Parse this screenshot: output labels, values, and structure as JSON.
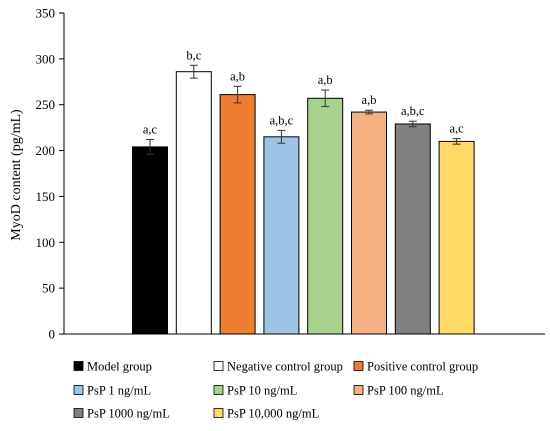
{
  "chart_data": {
    "type": "bar",
    "ylabel": "MyoD content (pg/mL)",
    "ylim": [
      0,
      350
    ],
    "yticks": [
      0,
      50,
      100,
      150,
      200,
      250,
      300,
      350
    ],
    "categories": [
      "Model group",
      "Negative control group",
      "Positive control group",
      "PsP 1 ng/mL",
      "PsP 10 ng/mL",
      "PsP 100 ng/mL",
      "PsP 1000 ng/mL",
      "PsP 10,000 ng/mL"
    ],
    "values": [
      204,
      286,
      261,
      215,
      257,
      242,
      229,
      210
    ],
    "errors": [
      8,
      7,
      9,
      7,
      9,
      2,
      3,
      3
    ],
    "annotations": [
      "a,c",
      "b,c",
      "a,b",
      "a,b,c",
      "a,b",
      "a,b",
      "a,b,c",
      "a,c"
    ],
    "colors": [
      "#000000",
      "#ffffff",
      "#ed7d31",
      "#9dc3e6",
      "#a9d18e",
      "#f4b183",
      "#808080",
      "#ffd966"
    ],
    "grid": false,
    "legend_position": "bottom"
  }
}
